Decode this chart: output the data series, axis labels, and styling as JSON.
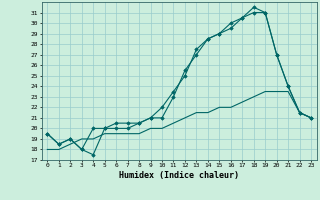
{
  "xlabel": "Humidex (Indice chaleur)",
  "background_color": "#cceedd",
  "grid_color": "#99cccc",
  "line_color": "#006666",
  "xlim": [
    -0.5,
    23.5
  ],
  "ylim": [
    17,
    32
  ],
  "yticks": [
    17,
    18,
    19,
    20,
    21,
    22,
    23,
    24,
    25,
    26,
    27,
    28,
    29,
    30,
    31
  ],
  "xticks": [
    0,
    1,
    2,
    3,
    4,
    5,
    6,
    7,
    8,
    9,
    10,
    11,
    12,
    13,
    14,
    15,
    16,
    17,
    18,
    19,
    20,
    21,
    22,
    23
  ],
  "line1_x": [
    0,
    1,
    2,
    3,
    4,
    5,
    6,
    7,
    8,
    9,
    10,
    11,
    12,
    13,
    14,
    15,
    16,
    17,
    18,
    19,
    20,
    21,
    22,
    23
  ],
  "line1_y": [
    19.5,
    18.5,
    19.0,
    18.0,
    20.0,
    20.0,
    20.0,
    20.0,
    20.5,
    21.0,
    21.0,
    23.0,
    25.5,
    27.0,
    28.5,
    29.0,
    29.5,
    30.5,
    31.5,
    31.0,
    27.0,
    24.0,
    21.5,
    21.0
  ],
  "line2_x": [
    0,
    1,
    2,
    3,
    4,
    5,
    6,
    7,
    8,
    9,
    10,
    11,
    12,
    13,
    14,
    15,
    16,
    17,
    18,
    19,
    20,
    21,
    22,
    23
  ],
  "line2_y": [
    19.5,
    18.5,
    19.0,
    18.0,
    17.5,
    20.0,
    20.5,
    20.5,
    20.5,
    21.0,
    22.0,
    23.5,
    25.0,
    27.5,
    28.5,
    29.0,
    30.0,
    30.5,
    31.0,
    31.0,
    27.0,
    24.0,
    21.5,
    21.0
  ],
  "line3_x": [
    0,
    1,
    2,
    3,
    4,
    5,
    6,
    7,
    8,
    9,
    10,
    11,
    12,
    13,
    14,
    15,
    16,
    17,
    18,
    19,
    20,
    21,
    22,
    23
  ],
  "line3_y": [
    18.0,
    18.0,
    18.5,
    19.0,
    19.0,
    19.5,
    19.5,
    19.5,
    19.5,
    20.0,
    20.0,
    20.5,
    21.0,
    21.5,
    21.5,
    22.0,
    22.0,
    22.5,
    23.0,
    23.5,
    23.5,
    23.5,
    21.5,
    21.0
  ]
}
